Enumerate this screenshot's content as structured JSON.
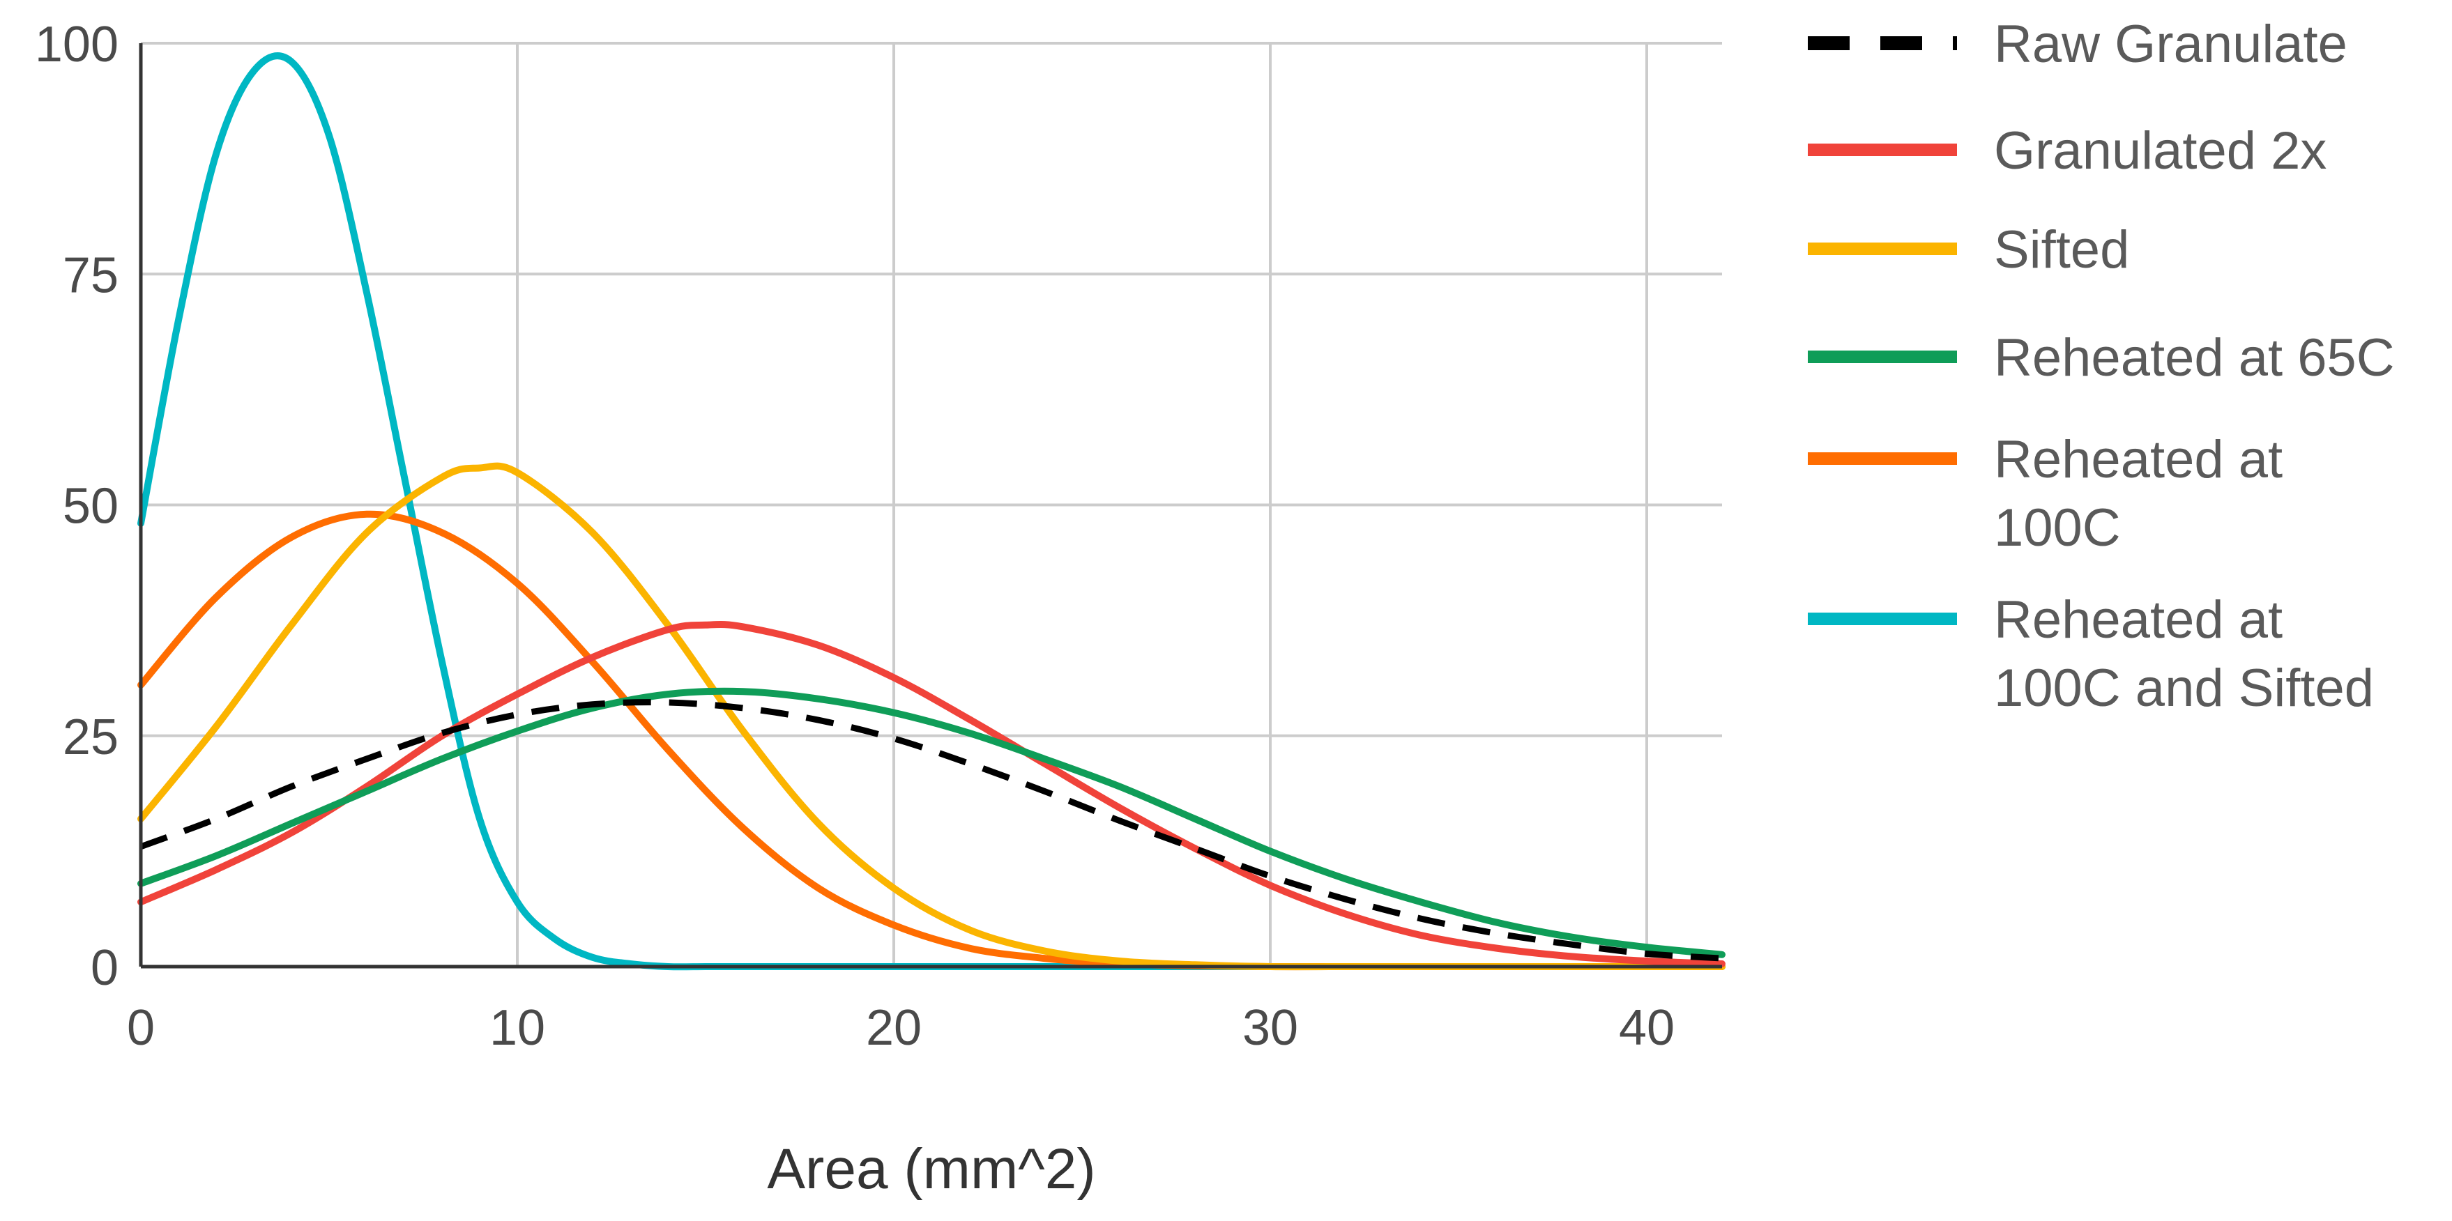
{
  "chart_data": {
    "type": "line",
    "title": "",
    "xlabel": "Area (mm^2)",
    "ylabel": "",
    "xlim": [
      0,
      42
    ],
    "ylim": [
      0,
      100
    ],
    "x_ticks": [
      0,
      10,
      20,
      30,
      40
    ],
    "y_ticks": [
      0,
      25,
      50,
      75,
      100
    ],
    "grid": true,
    "legend_position": "right",
    "series": [
      {
        "name": "Raw Granulate",
        "color": "#000000",
        "dashed": true,
        "x": [
          0,
          2,
          4,
          6,
          8,
          10,
          12,
          14,
          16,
          18,
          20,
          22,
          24,
          26,
          28,
          30,
          32,
          34,
          36,
          38,
          40,
          42
        ],
        "y": [
          13,
          16,
          19.5,
          22.5,
          25.3,
          27.3,
          28.4,
          28.6,
          28,
          26.7,
          24.7,
          22,
          19,
          15.8,
          12.8,
          9.8,
          7.3,
          5.2,
          3.6,
          2.4,
          1.4,
          0.9
        ]
      },
      {
        "name": "Granulated 2x",
        "color": "#f0433a",
        "dashed": false,
        "x": [
          0,
          2,
          4,
          6,
          8,
          10,
          12,
          14,
          15,
          16,
          18,
          20,
          22,
          24,
          26,
          28,
          30,
          32,
          34,
          36,
          38,
          40,
          42
        ],
        "y": [
          7,
          10.5,
          14.5,
          19.5,
          25,
          29.5,
          33.5,
          36.5,
          37,
          36.8,
          34.8,
          31.3,
          26.8,
          22,
          17.2,
          12.8,
          8.8,
          5.7,
          3.4,
          2,
          1.1,
          0.6,
          0.3
        ]
      },
      {
        "name": "Sifted",
        "color": "#fbb400",
        "dashed": false,
        "x": [
          0,
          2,
          4,
          6,
          8,
          9,
          10,
          12,
          14,
          16,
          18,
          20,
          22,
          24,
          26,
          28,
          30,
          32,
          34,
          36,
          38,
          40,
          42
        ],
        "y": [
          16,
          26,
          37,
          47,
          53,
          54,
          53.5,
          47,
          37,
          25.5,
          15.5,
          8.5,
          4,
          1.7,
          0.6,
          0.2,
          0,
          0,
          0,
          0,
          0,
          0,
          0
        ]
      },
      {
        "name": "Reheated at 65C",
        "color": "#0f9d58",
        "dashed": false,
        "x": [
          0,
          2,
          4,
          6,
          8,
          10,
          12,
          14,
          16,
          18,
          20,
          22,
          24,
          26,
          28,
          30,
          32,
          34,
          36,
          38,
          40,
          42
        ],
        "y": [
          9,
          12,
          15.5,
          19,
          22.5,
          25.5,
          28,
          29.5,
          29.8,
          29,
          27.5,
          25.3,
          22.5,
          19.5,
          16,
          12.5,
          9.5,
          7,
          4.8,
          3.2,
          2.1,
          1.3
        ]
      },
      {
        "name": "Reheated at 100C",
        "color": "#ff6d01",
        "dashed": false,
        "x": [
          0,
          2,
          4,
          6,
          8,
          10,
          12,
          14,
          16,
          18,
          20,
          22,
          24,
          26,
          28,
          30,
          32,
          34,
          36,
          38,
          40,
          42
        ],
        "y": [
          30.5,
          40,
          46.5,
          49,
          47,
          41.5,
          33,
          23.5,
          15,
          8.5,
          4.5,
          2,
          0.9,
          0.3,
          0.1,
          0,
          0,
          0,
          0,
          0,
          0,
          0
        ]
      },
      {
        "name": "Reheated at 100C and Sifted",
        "color": "#00b7c3",
        "dashed": false,
        "x": [
          0,
          1,
          2,
          3,
          4,
          5,
          6,
          7,
          8,
          9,
          10,
          11,
          12,
          13,
          14,
          15,
          16,
          18,
          20,
          25,
          30,
          35,
          40,
          42
        ],
        "y": [
          48,
          70,
          88,
          97,
          98,
          90,
          73,
          53,
          33,
          16,
          7,
          3,
          1,
          0.3,
          0,
          0,
          0,
          0,
          0,
          0,
          0,
          0,
          0,
          0
        ]
      }
    ],
    "legend_lines": [
      [
        "Raw Granulate"
      ],
      [
        "Granulated 2x"
      ],
      [
        "Sifted"
      ],
      [
        "Reheated at 65C"
      ],
      [
        "Reheated at",
        "100C"
      ],
      [
        "Reheated at",
        "100C and Sifted"
      ]
    ]
  }
}
